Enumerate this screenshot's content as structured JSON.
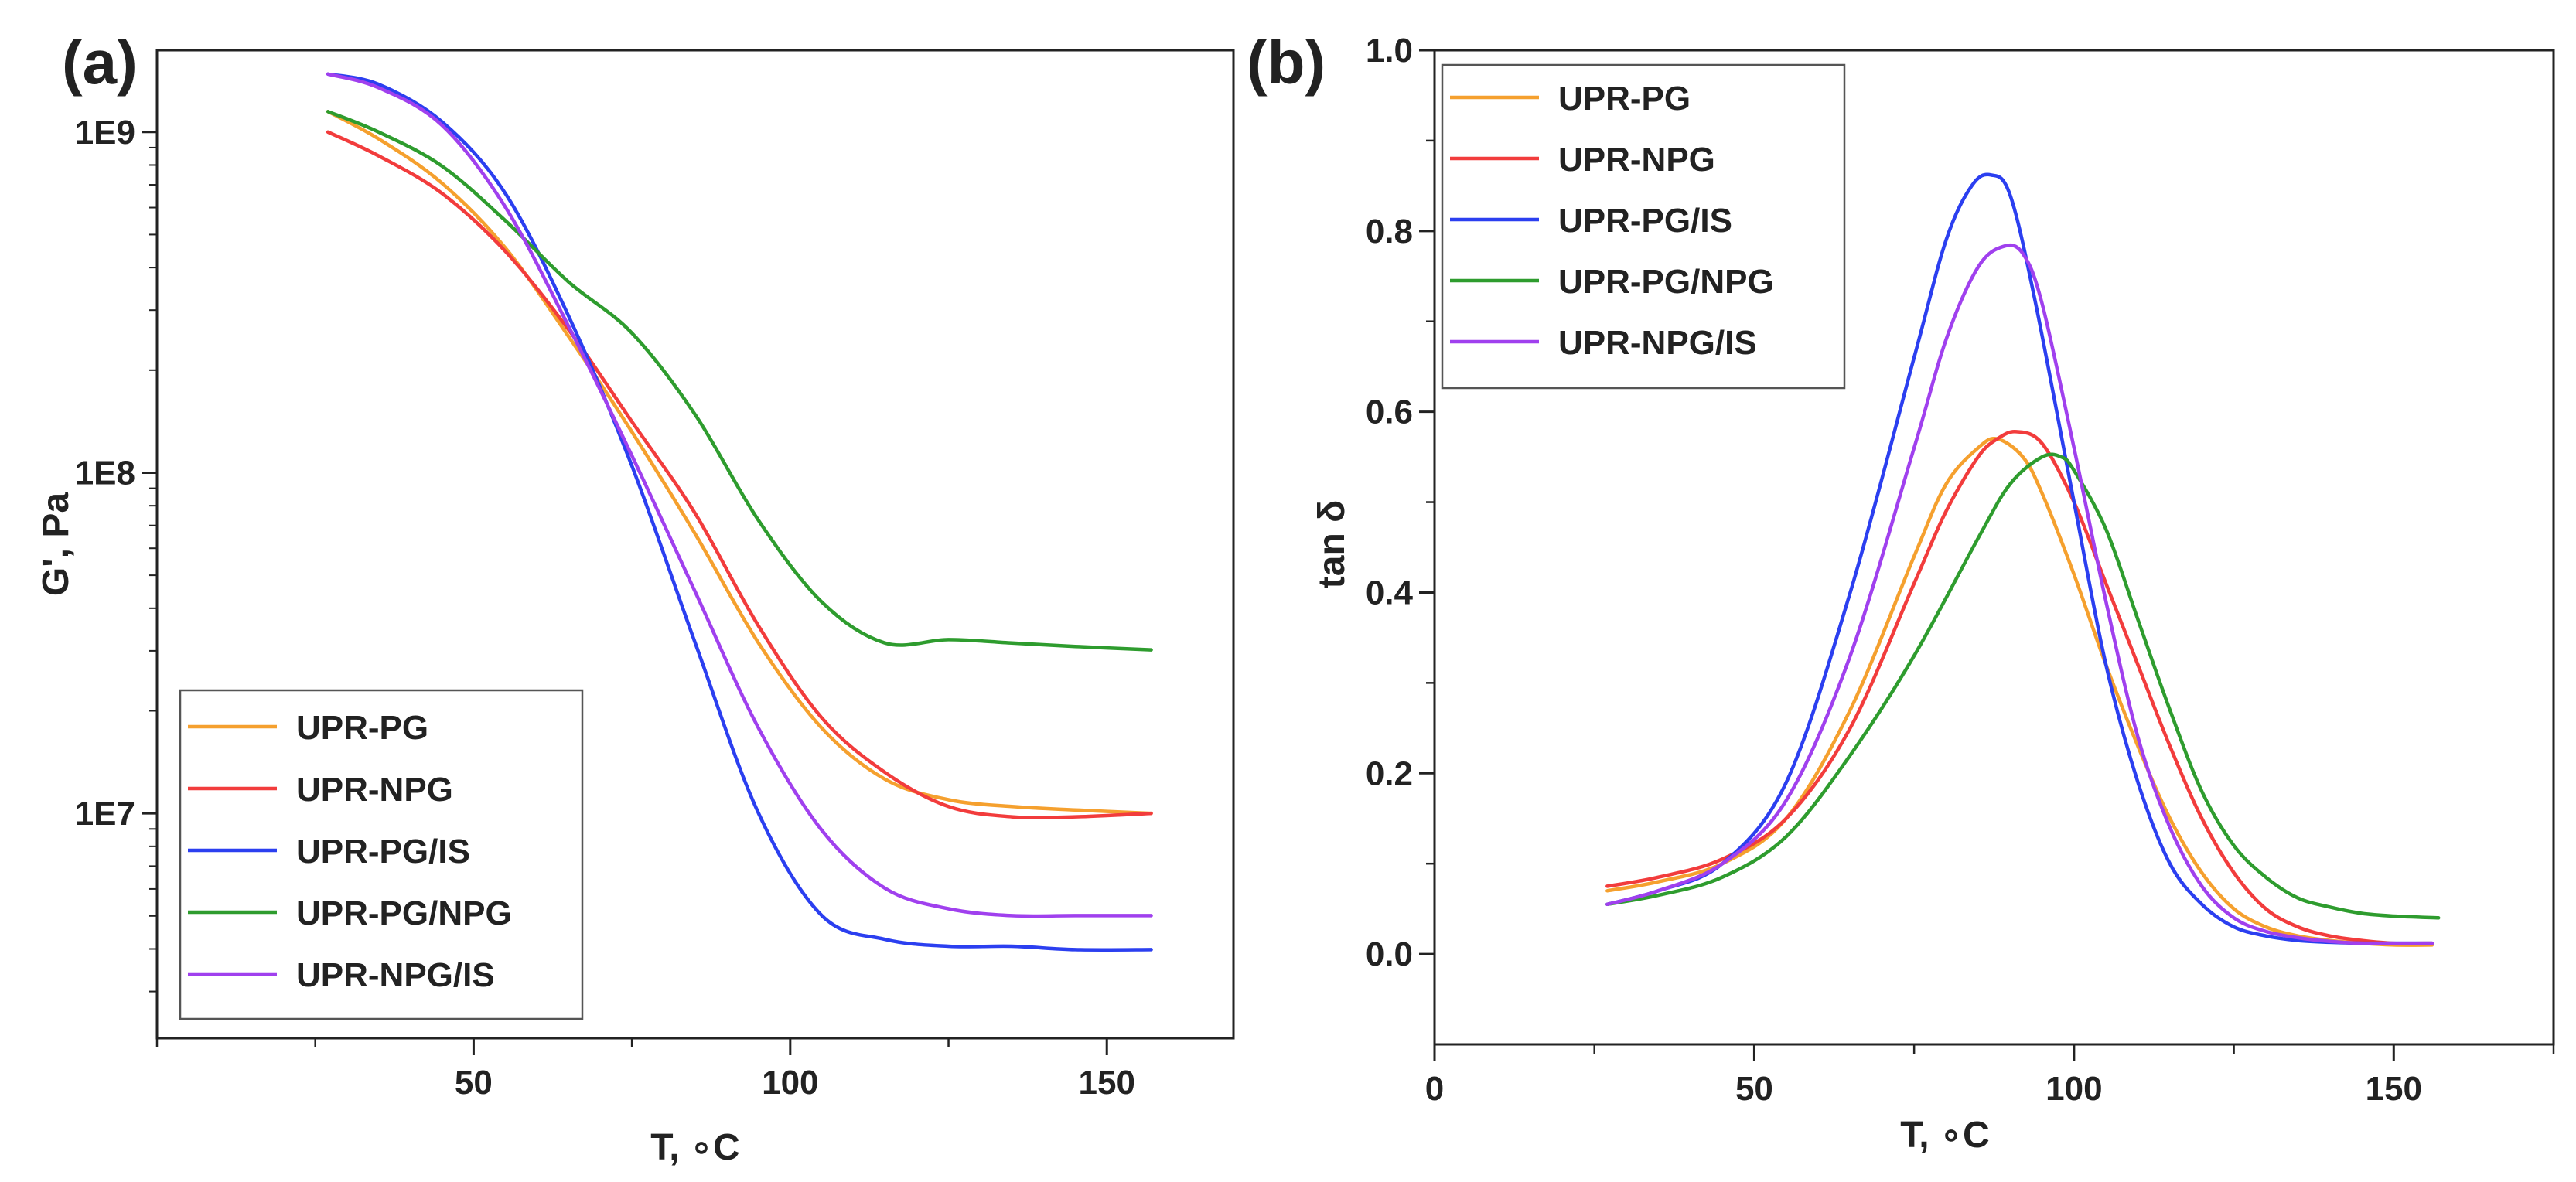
{
  "chart_data": [
    {
      "panel": "(a)",
      "type": "line",
      "title": "",
      "xlabel": "T, ∘C",
      "ylabel": "G', Pa",
      "yscale": "log",
      "xlim": [
        0,
        170
      ],
      "ylim_log10": [
        6.34,
        9.24
      ],
      "xticks": [
        50,
        100,
        150
      ],
      "xtick_labels": [
        "50",
        "100",
        "150"
      ],
      "yticks_log10": [
        7,
        8,
        9
      ],
      "ytick_labels": [
        "1E7",
        "1E8",
        "1E9"
      ],
      "legend_position": "bottom-left",
      "series": [
        {
          "name": "UPR-PG",
          "color": "#f5a02e",
          "x": [
            27,
            35,
            45,
            55,
            65,
            75,
            85,
            95,
            105,
            115,
            125,
            135,
            145,
            157
          ],
          "y_log10": [
            9.06,
            8.98,
            8.85,
            8.66,
            8.4,
            8.12,
            7.82,
            7.5,
            7.25,
            7.1,
            7.04,
            7.02,
            7.01,
            7.0
          ]
        },
        {
          "name": "UPR-NPG",
          "color": "#f23c3c",
          "x": [
            27,
            35,
            45,
            55,
            65,
            75,
            85,
            95,
            105,
            115,
            125,
            135,
            145,
            157
          ],
          "y_log10": [
            9.0,
            8.93,
            8.82,
            8.65,
            8.42,
            8.15,
            7.88,
            7.55,
            7.28,
            7.12,
            7.02,
            6.99,
            6.99,
            7.0
          ]
        },
        {
          "name": "UPR-PG/IS",
          "color": "#2b3ff0",
          "x": [
            27,
            35,
            45,
            55,
            65,
            75,
            85,
            95,
            105,
            115,
            125,
            135,
            145,
            157
          ],
          "y_log10": [
            9.17,
            9.14,
            9.03,
            8.82,
            8.46,
            8.02,
            7.5,
            7.0,
            6.7,
            6.63,
            6.61,
            6.61,
            6.6,
            6.6
          ]
        },
        {
          "name": "UPR-PG/NPG",
          "color": "#2e9c2e",
          "x": [
            27,
            35,
            45,
            55,
            65,
            75,
            85,
            95,
            105,
            115,
            125,
            135,
            145,
            157
          ],
          "y_log10": [
            9.06,
            9.0,
            8.9,
            8.74,
            8.56,
            8.41,
            8.17,
            7.86,
            7.62,
            7.5,
            7.51,
            7.5,
            7.49,
            7.48
          ]
        },
        {
          "name": "UPR-NPG/IS",
          "color": "#a040ee",
          "x": [
            27,
            35,
            45,
            55,
            65,
            75,
            85,
            95,
            105,
            115,
            125,
            135,
            145,
            157
          ],
          "y_log10": [
            9.17,
            9.13,
            9.02,
            8.78,
            8.43,
            8.05,
            7.65,
            7.25,
            6.95,
            6.78,
            6.72,
            6.7,
            6.7,
            6.7
          ]
        }
      ]
    },
    {
      "panel": "(b)",
      "type": "line",
      "title": "",
      "xlabel": "T, ∘C",
      "ylabel": "tan δ",
      "xlim": [
        0,
        175
      ],
      "ylim": [
        -0.1,
        1.0
      ],
      "xticks": [
        0,
        50,
        100,
        150
      ],
      "xtick_labels": [
        "0",
        "50",
        "100",
        "150"
      ],
      "yticks": [
        0.0,
        0.2,
        0.4,
        0.6,
        0.8,
        1.0
      ],
      "ytick_labels": [
        "0.0",
        "0.2",
        "0.4",
        "0.6",
        "0.8",
        "1.0"
      ],
      "legend_position": "top-left",
      "series": [
        {
          "name": "UPR-PG",
          "color": "#f5a02e",
          "x": [
            27,
            35,
            45,
            55,
            65,
            75,
            80,
            85,
            88,
            92,
            95,
            100,
            105,
            110,
            115,
            120,
            125,
            130,
            135,
            140,
            145,
            150,
            156
          ],
          "y": [
            0.07,
            0.08,
            0.1,
            0.15,
            0.27,
            0.44,
            0.52,
            0.56,
            0.57,
            0.55,
            0.51,
            0.42,
            0.32,
            0.23,
            0.15,
            0.09,
            0.05,
            0.03,
            0.02,
            0.015,
            0.012,
            0.01,
            0.01
          ]
        },
        {
          "name": "UPR-NPG",
          "color": "#f23c3c",
          "x": [
            27,
            35,
            45,
            55,
            65,
            75,
            80,
            85,
            88,
            91,
            95,
            100,
            105,
            110,
            115,
            120,
            125,
            130,
            135,
            140,
            145,
            150,
            156
          ],
          "y": [
            0.075,
            0.085,
            0.105,
            0.15,
            0.25,
            0.41,
            0.49,
            0.55,
            0.57,
            0.578,
            0.565,
            0.5,
            0.41,
            0.32,
            0.23,
            0.15,
            0.09,
            0.05,
            0.03,
            0.02,
            0.015,
            0.012,
            0.012
          ]
        },
        {
          "name": "UPR-PG/IS",
          "color": "#2b3ff0",
          "x": [
            27,
            35,
            45,
            55,
            65,
            75,
            80,
            84,
            87,
            90,
            94,
            100,
            105,
            110,
            115,
            120,
            125,
            130,
            135,
            140,
            145,
            150,
            156
          ],
          "y": [
            0.055,
            0.07,
            0.1,
            0.19,
            0.4,
            0.66,
            0.79,
            0.85,
            0.862,
            0.84,
            0.72,
            0.5,
            0.32,
            0.19,
            0.1,
            0.055,
            0.03,
            0.02,
            0.015,
            0.013,
            0.012,
            0.012,
            0.012
          ]
        },
        {
          "name": "UPR-PG/NPG",
          "color": "#2e9c2e",
          "x": [
            27,
            35,
            45,
            55,
            65,
            75,
            85,
            90,
            95,
            98,
            100,
            105,
            110,
            115,
            120,
            125,
            130,
            135,
            140,
            145,
            150,
            157
          ],
          "y": [
            0.055,
            0.065,
            0.085,
            0.13,
            0.22,
            0.33,
            0.46,
            0.52,
            0.55,
            0.55,
            0.535,
            0.47,
            0.37,
            0.27,
            0.18,
            0.12,
            0.085,
            0.062,
            0.052,
            0.045,
            0.042,
            0.04
          ]
        },
        {
          "name": "UPR-NPG/IS",
          "color": "#a040ee",
          "x": [
            27,
            35,
            45,
            55,
            65,
            75,
            80,
            85,
            89,
            92,
            95,
            100,
            105,
            110,
            115,
            120,
            125,
            130,
            135,
            140,
            145,
            150,
            156
          ],
          "y": [
            0.055,
            0.07,
            0.1,
            0.17,
            0.33,
            0.56,
            0.68,
            0.76,
            0.783,
            0.775,
            0.72,
            0.56,
            0.39,
            0.24,
            0.14,
            0.075,
            0.04,
            0.025,
            0.018,
            0.014,
            0.012,
            0.012,
            0.012
          ]
        }
      ]
    }
  ]
}
